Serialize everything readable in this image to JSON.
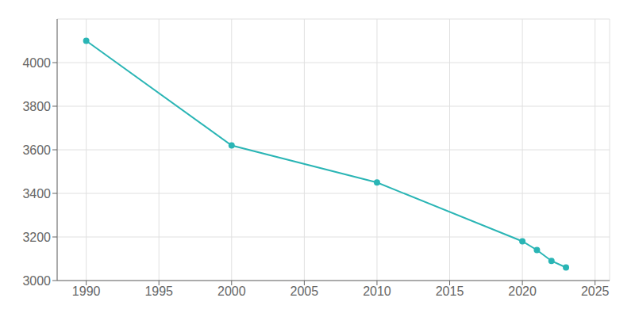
{
  "chart_data": {
    "type": "line",
    "x": [
      1990,
      2000,
      2010,
      2020,
      2021,
      2022,
      2023
    ],
    "values": [
      4100,
      3620,
      3450,
      3180,
      3140,
      3090,
      3060
    ],
    "color": "#2ab5b5",
    "marker": "circle",
    "xlim": [
      1988,
      2026
    ],
    "ylim": [
      3000,
      4200
    ],
    "xticks": [
      1990,
      1995,
      2000,
      2005,
      2010,
      2015,
      2020,
      2025
    ],
    "yticks": [
      3000,
      3200,
      3400,
      3600,
      3800,
      4000
    ],
    "grid": true
  }
}
